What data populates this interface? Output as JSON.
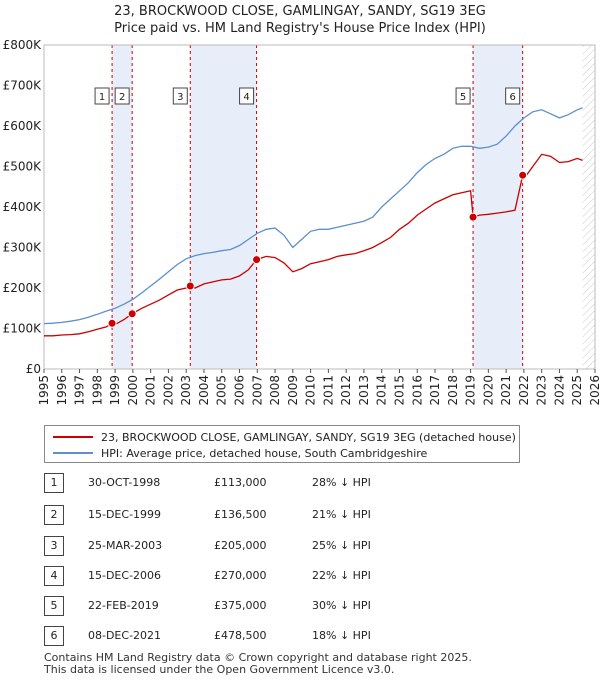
{
  "title_line1": "23, BROCKWOOD CLOSE, GAMLINGAY, SANDY, SG19 3EG",
  "title_line2": "Price paid vs. HM Land Registry's House Price Index (HPI)",
  "colors": {
    "property": "#cc0000",
    "hpi": "#5b8fcf",
    "shade": "#e8eef9",
    "marker_border": "#cc0000"
  },
  "chart_data": {
    "type": "line",
    "xlim": [
      1995,
      2026
    ],
    "ylim": [
      0,
      800000
    ],
    "x_ticks": [
      1995,
      1996,
      1997,
      1998,
      1999,
      2000,
      2001,
      2002,
      2003,
      2004,
      2005,
      2006,
      2007,
      2008,
      2009,
      2010,
      2011,
      2012,
      2013,
      2014,
      2015,
      2016,
      2017,
      2018,
      2019,
      2020,
      2021,
      2022,
      2023,
      2024,
      2025,
      2026
    ],
    "y_ticks": [
      0,
      100000,
      200000,
      300000,
      400000,
      500000,
      600000,
      700000,
      800000
    ],
    "y_tick_labels": [
      "£0",
      "£100K",
      "£200K",
      "£300K",
      "£400K",
      "£500K",
      "£600K",
      "£700K",
      "£800K"
    ],
    "grid": false,
    "legend_position": "bottom",
    "series": [
      {
        "name": "23, BROCKWOOD CLOSE, GAMLINGAY, SANDY, SG19 3EG (detached house)",
        "x": [
          1995.0,
          1995.5,
          1996.0,
          1996.5,
          1997.0,
          1997.5,
          1998.0,
          1998.5,
          1998.83,
          1999.0,
          1999.5,
          1999.96,
          2000.5,
          2001.0,
          2001.5,
          2002.0,
          2002.5,
          2003.0,
          2003.23,
          2003.5,
          2004.0,
          2004.5,
          2005.0,
          2005.5,
          2006.0,
          2006.5,
          2006.96,
          2007.5,
          2008.0,
          2008.5,
          2009.0,
          2009.5,
          2010.0,
          2010.5,
          2011.0,
          2011.5,
          2012.0,
          2012.5,
          2013.0,
          2013.5,
          2014.0,
          2014.5,
          2015.0,
          2015.5,
          2016.0,
          2016.5,
          2017.0,
          2017.5,
          2018.0,
          2018.5,
          2019.0,
          2019.14,
          2019.5,
          2020.0,
          2020.5,
          2021.0,
          2021.5,
          2021.93,
          2022.0,
          2022.5,
          2023.0,
          2023.5,
          2024.0,
          2024.5,
          2025.0,
          2025.3
        ],
        "y": [
          82000,
          82000,
          84000,
          85000,
          87000,
          92000,
          98000,
          104000,
          113000,
          110000,
          122000,
          136500,
          150000,
          160000,
          170000,
          183000,
          195000,
          200000,
          205000,
          200000,
          210000,
          215000,
          220000,
          222000,
          230000,
          245000,
          270000,
          278000,
          275000,
          262000,
          240000,
          248000,
          260000,
          265000,
          270000,
          278000,
          282000,
          285000,
          292000,
          300000,
          312000,
          325000,
          345000,
          360000,
          380000,
          395000,
          410000,
          420000,
          430000,
          435000,
          440000,
          375000,
          380000,
          382000,
          385000,
          388000,
          392000,
          478500,
          470000,
          500000,
          530000,
          525000,
          510000,
          512000,
          520000,
          515000
        ]
      },
      {
        "name": "HPI: Average price, detached house, South Cambridgeshire",
        "x": [
          1995.0,
          1995.5,
          1996.0,
          1996.5,
          1997.0,
          1997.5,
          1998.0,
          1998.5,
          1999.0,
          1999.5,
          2000.0,
          2000.5,
          2001.0,
          2001.5,
          2002.0,
          2002.5,
          2003.0,
          2003.5,
          2004.0,
          2004.5,
          2005.0,
          2005.5,
          2006.0,
          2006.5,
          2007.0,
          2007.5,
          2008.0,
          2008.5,
          2009.0,
          2009.5,
          2010.0,
          2010.5,
          2011.0,
          2011.5,
          2012.0,
          2012.5,
          2013.0,
          2013.5,
          2014.0,
          2014.5,
          2015.0,
          2015.5,
          2016.0,
          2016.5,
          2017.0,
          2017.5,
          2018.0,
          2018.5,
          2019.0,
          2019.5,
          2020.0,
          2020.5,
          2021.0,
          2021.5,
          2022.0,
          2022.5,
          2023.0,
          2023.5,
          2024.0,
          2024.5,
          2025.0,
          2025.3
        ],
        "y": [
          112000,
          113000,
          115000,
          118000,
          122000,
          128000,
          135000,
          143000,
          150000,
          160000,
          172000,
          188000,
          205000,
          222000,
          240000,
          258000,
          272000,
          280000,
          285000,
          288000,
          292000,
          295000,
          305000,
          320000,
          335000,
          345000,
          348000,
          330000,
          300000,
          320000,
          340000,
          345000,
          345000,
          350000,
          355000,
          360000,
          365000,
          375000,
          400000,
          420000,
          440000,
          460000,
          485000,
          505000,
          520000,
          530000,
          545000,
          550000,
          550000,
          545000,
          548000,
          555000,
          575000,
          600000,
          620000,
          635000,
          640000,
          630000,
          620000,
          628000,
          640000,
          645000
        ]
      }
    ],
    "transactions": [
      {
        "num": "1",
        "x": 1998.83
      },
      {
        "num": "2",
        "x": 1999.96
      },
      {
        "num": "3",
        "x": 2003.23
      },
      {
        "num": "4",
        "x": 2006.96
      },
      {
        "num": "5",
        "x": 2019.14
      },
      {
        "num": "6",
        "x": 2021.93
      }
    ],
    "shaded_ranges": [
      [
        1998.83,
        1999.96
      ],
      [
        2003.23,
        2006.96
      ],
      [
        2019.14,
        2021.93
      ]
    ]
  },
  "transactions_table": [
    {
      "num": "1",
      "date": "30-OCT-1998",
      "price": "£113,000",
      "hpi": "28% ↓ HPI"
    },
    {
      "num": "2",
      "date": "15-DEC-1999",
      "price": "£136,500",
      "hpi": "21% ↓ HPI"
    },
    {
      "num": "3",
      "date": "25-MAR-2003",
      "price": "£205,000",
      "hpi": "25% ↓ HPI"
    },
    {
      "num": "4",
      "date": "15-DEC-2006",
      "price": "£270,000",
      "hpi": "22% ↓ HPI"
    },
    {
      "num": "5",
      "date": "22-FEB-2019",
      "price": "£375,000",
      "hpi": "30% ↓ HPI"
    },
    {
      "num": "6",
      "date": "08-DEC-2021",
      "price": "£478,500",
      "hpi": "18% ↓ HPI"
    }
  ],
  "legend": {
    "property": "23, BROCKWOOD CLOSE, GAMLINGAY, SANDY, SG19 3EG (detached house)",
    "hpi": "HPI: Average price, detached house, South Cambridgeshire"
  },
  "footer_line1": "Contains HM Land Registry data © Crown copyright and database right 2025.",
  "footer_line2": "This data is licensed under the Open Government Licence v3.0."
}
